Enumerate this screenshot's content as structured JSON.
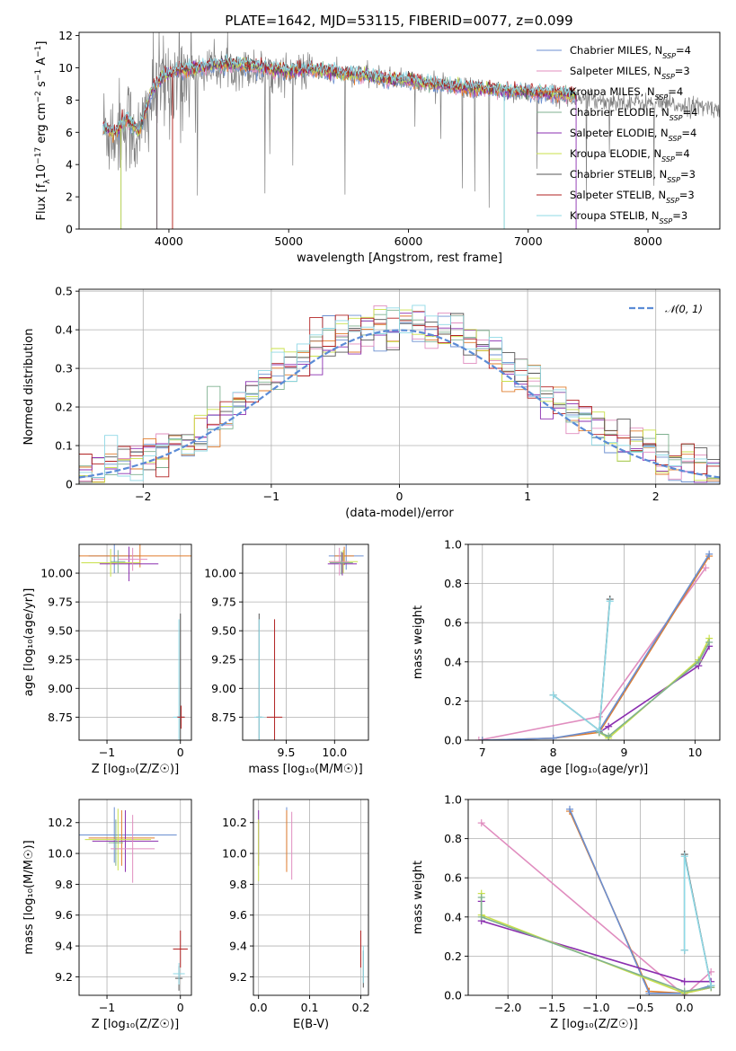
{
  "figure": {
    "title": "PLATE=1642, MJD=53115, FIBERID=0077, z=0.099"
  },
  "series_legend": [
    {
      "name": "Chabrier MILES, N",
      "sub": "SSP",
      "suffix": "=4",
      "color": "#6b8fd0"
    },
    {
      "name": "Salpeter MILES, N",
      "sub": "SSP",
      "suffix": "=3",
      "color": "#e08dbf"
    },
    {
      "name": "Kroupa MILES, N",
      "sub": "SSP",
      "suffix": "=4",
      "color": "#e07c2c"
    },
    {
      "name": "Chabrier ELODIE, N",
      "sub": "SSP",
      "suffix": "=4",
      "color": "#7fb18f"
    },
    {
      "name": "Salpeter ELODIE, N",
      "sub": "SSP",
      "suffix": "=4",
      "color": "#8b2fb0"
    },
    {
      "name": "Kroupa ELODIE, N",
      "sub": "SSP",
      "suffix": "=4",
      "color": "#c9e04a"
    },
    {
      "name": "Chabrier STELIB, N",
      "sub": "SSP",
      "suffix": "=3",
      "color": "#555555"
    },
    {
      "name": "Salpeter STELIB, N",
      "sub": "SSP",
      "suffix": "=3",
      "color": "#b22222"
    },
    {
      "name": "Kroupa STELIB, N",
      "sub": "SSP",
      "suffix": "=3",
      "color": "#8fd9e6"
    }
  ],
  "chart_data": [
    {
      "id": "spectrum",
      "type": "line",
      "title": "PLATE=1642, MJD=53115, FIBERID=0077, z=0.099",
      "xlabel": "wavelength [Angstrom, rest frame]",
      "ylabel_parts": [
        "Flux [f",
        "λ",
        "10",
        "−17",
        " erg cm",
        "−2",
        " s",
        "−1",
        " A",
        "−1",
        "]"
      ],
      "xlim": [
        3250,
        8600
      ],
      "ylim": [
        0,
        12.2
      ],
      "xticks": [
        4000,
        5000,
        6000,
        7000,
        8000
      ],
      "yticks": [
        0,
        2,
        4,
        6,
        8,
        10,
        12
      ],
      "grid": false,
      "legend_position": "right",
      "data_color": "#808080",
      "data_anchor_x": [
        3450,
        3550,
        3650,
        3750,
        3850,
        3950,
        4050,
        4200,
        4400,
        4600,
        4800,
        5000,
        5200,
        5400,
        5600,
        5800,
        6000,
        6200,
        6400,
        6600,
        6800,
        7000,
        7200,
        7400,
        7600,
        7800,
        8000,
        8200,
        8400,
        8600
      ],
      "data_anchor_y": [
        6.3,
        6.0,
        6.7,
        5.5,
        8.0,
        9.0,
        9.5,
        9.8,
        10.0,
        10.0,
        9.8,
        9.7,
        9.8,
        9.7,
        9.6,
        9.4,
        9.2,
        9.0,
        8.8,
        8.7,
        8.5,
        8.4,
        8.3,
        8.1,
        8.0,
        7.9,
        7.8,
        7.7,
        7.6,
        7.5
      ],
      "model_anchor_x": [
        3450,
        3550,
        3650,
        3750,
        3850,
        3950,
        4050,
        4200,
        4400,
        4600,
        4800,
        5000,
        5200,
        5400,
        5600,
        5800,
        6000,
        6200,
        6400,
        6600,
        6800,
        7000,
        7200,
        7400
      ],
      "model_anchor_y": [
        6.3,
        6.0,
        6.8,
        6.0,
        8.5,
        9.5,
        9.8,
        10.0,
        10.2,
        10.2,
        10.0,
        9.8,
        9.9,
        9.7,
        9.6,
        9.3,
        9.2,
        9.0,
        8.8,
        8.7,
        8.6,
        8.5,
        8.4,
        8.3
      ]
    },
    {
      "id": "residuals",
      "type": "step",
      "xlabel": "(data-model)/error",
      "ylabel": "Normed distribution",
      "xlim": [
        -2.5,
        2.5
      ],
      "ylim": [
        0,
        0.505
      ],
      "xticks": [
        -2,
        -1,
        0,
        1,
        2
      ],
      "yticks": [
        0.0,
        0.1,
        0.2,
        0.3,
        0.4,
        0.5
      ],
      "grid": true,
      "legend": [
        {
          "label": "𝒩(0, 1)",
          "color": "#5b8bd6",
          "style": "dashed"
        }
      ],
      "legend_position": "top-right",
      "bin_width": 0.1
    },
    {
      "id": "age-vs-Z",
      "type": "errorbar",
      "xlabel": "Z [log₁₀(Z/Z☉)]",
      "ylabel": "age  [log₁₀(age/yr)]",
      "xlim": [
        -1.38,
        0.15
      ],
      "ylim": [
        8.55,
        10.25
      ],
      "xticks": [
        -1,
        0
      ],
      "yticks": [
        8.75,
        9.0,
        9.25,
        9.5,
        9.75,
        10.0
      ],
      "ytick_labels": [
        "8.75",
        "9.00",
        "9.25",
        "9.50",
        "9.75",
        "10.00"
      ],
      "grid": true,
      "points": [
        {
          "series": 6,
          "x": 0.0,
          "y": 8.75,
          "xerr": 0.05,
          "yerr": 0.9
        },
        {
          "series": 8,
          "x": -0.02,
          "y": 8.75,
          "xerr": 0.08,
          "yerr": 0.85
        },
        {
          "series": 7,
          "x": 0.01,
          "y": 8.75,
          "xerr": 0.05,
          "yerr": 0.1
        },
        {
          "series": 0,
          "x": -0.9,
          "y": 10.15,
          "xerr": 0.35,
          "yerr": 0.15
        },
        {
          "series": 2,
          "x": -0.55,
          "y": 10.15,
          "xerr": 0.9,
          "yerr": 0.1
        },
        {
          "series": 4,
          "x": -0.7,
          "y": 10.08,
          "xerr": 0.4,
          "yerr": 0.15
        },
        {
          "series": 5,
          "x": -0.95,
          "y": 10.09,
          "xerr": 0.4,
          "yerr": 0.12
        },
        {
          "series": 1,
          "x": -0.65,
          "y": 10.12,
          "xerr": 0.2,
          "yerr": 0.1
        },
        {
          "series": 3,
          "x": -0.85,
          "y": 10.1,
          "xerr": 0.1,
          "yerr": 0.1
        }
      ]
    },
    {
      "id": "age-vs-mass",
      "type": "errorbar",
      "xlabel": "mass [log₁₀(M/M☉)]",
      "ylabel": "",
      "xlim": [
        9.05,
        10.35
      ],
      "ylim": [
        8.55,
        10.25
      ],
      "xticks": [
        9.5,
        10.0
      ],
      "xtick_labels": [
        "9.5",
        "10.0"
      ],
      "yticks": [
        8.75,
        9.0,
        9.25,
        9.5,
        9.75,
        10.0
      ],
      "ytick_labels": [
        "8.75",
        "9.00",
        "9.25",
        "9.50",
        "9.75",
        "10.00"
      ],
      "grid": true,
      "points": [
        {
          "series": 6,
          "x": 9.22,
          "y": 8.75,
          "xerr": 0.03,
          "yerr": 0.9
        },
        {
          "series": 8,
          "x": 9.22,
          "y": 8.75,
          "xerr": 0.05,
          "yerr": 0.85
        },
        {
          "series": 7,
          "x": 9.38,
          "y": 8.75,
          "xerr": 0.08,
          "yerr": 0.85
        },
        {
          "series": 0,
          "x": 10.12,
          "y": 10.15,
          "xerr": 0.18,
          "yerr": 0.12
        },
        {
          "series": 2,
          "x": 10.1,
          "y": 10.15,
          "xerr": 0.1,
          "yerr": 0.08
        },
        {
          "series": 4,
          "x": 10.08,
          "y": 10.08,
          "xerr": 0.15,
          "yerr": 0.1
        },
        {
          "series": 5,
          "x": 10.09,
          "y": 10.1,
          "xerr": 0.15,
          "yerr": 0.1
        },
        {
          "series": 1,
          "x": 10.05,
          "y": 10.1,
          "xerr": 0.1,
          "yerr": 0.12
        },
        {
          "series": 3,
          "x": 10.07,
          "y": 10.09,
          "xerr": 0.12,
          "yerr": 0.1
        }
      ]
    },
    {
      "id": "massweight-vs-age",
      "type": "line",
      "xlabel": "age  [log₁₀(age/yr)]",
      "ylabel": "mass weight",
      "xlim": [
        6.8,
        10.35
      ],
      "ylim": [
        0,
        1.0
      ],
      "xticks": [
        7,
        8,
        9,
        10
      ],
      "yticks": [
        0.0,
        0.2,
        0.4,
        0.6,
        0.8,
        1.0
      ],
      "ytick_labels": [
        "0.0",
        "0.2",
        "0.4",
        "0.6",
        "0.8",
        "1.0"
      ],
      "grid": true,
      "lines": [
        {
          "series": 1,
          "x": [
            6.95,
            8.65,
            10.15
          ],
          "y": [
            0.0,
            0.12,
            0.88
          ]
        },
        {
          "series": 2,
          "x": [
            7.0,
            8.0,
            8.65,
            10.2
          ],
          "y": [
            0.0,
            0.01,
            0.04,
            0.94
          ]
        },
        {
          "series": 0,
          "x": [
            7.0,
            8.0,
            8.65,
            10.2
          ],
          "y": [
            0.0,
            0.01,
            0.05,
            0.95
          ]
        },
        {
          "series": 4,
          "x": [
            8.65,
            8.78,
            10.05,
            10.2
          ],
          "y": [
            0.04,
            0.07,
            0.38,
            0.48
          ]
        },
        {
          "series": 5,
          "x": [
            8.65,
            8.78,
            10.05,
            10.2
          ],
          "y": [
            0.04,
            0.01,
            0.41,
            0.52
          ]
        },
        {
          "series": 3,
          "x": [
            8.65,
            8.78,
            10.05,
            10.2
          ],
          "y": [
            0.04,
            0.02,
            0.4,
            0.5
          ]
        },
        {
          "series": 6,
          "x": [
            8.0,
            8.65,
            8.8
          ],
          "y": [
            0.23,
            0.05,
            0.72
          ]
        },
        {
          "series": 8,
          "x": [
            8.0,
            8.65,
            8.8
          ],
          "y": [
            0.23,
            0.05,
            0.71
          ]
        }
      ]
    },
    {
      "id": "mass-vs-Z",
      "type": "errorbar",
      "xlabel": "Z [log₁₀(Z/Z☉)]",
      "ylabel": "mass [log₁₀(M/M☉)]",
      "xlim": [
        -1.38,
        0.15
      ],
      "ylim": [
        9.08,
        10.35
      ],
      "xticks": [
        -1,
        0
      ],
      "yticks": [
        9.2,
        9.4,
        9.6,
        9.8,
        10.0,
        10.2
      ],
      "ytick_labels": [
        "9.2",
        "9.4",
        "9.6",
        "9.8",
        "10.0",
        "10.2"
      ],
      "grid": true,
      "points": [
        {
          "series": 6,
          "x": -0.02,
          "y": 9.19,
          "xerr": 0.05,
          "yerr": 0.08
        },
        {
          "series": 8,
          "x": -0.02,
          "y": 9.22,
          "xerr": 0.08,
          "yerr": 0.07
        },
        {
          "series": 7,
          "x": 0.0,
          "y": 9.38,
          "xerr": 0.1,
          "yerr": 0.12
        },
        {
          "series": 0,
          "x": -0.9,
          "y": 10.12,
          "xerr": 0.85,
          "yerr": 0.18
        },
        {
          "series": 2,
          "x": -0.8,
          "y": 10.1,
          "xerr": 0.45,
          "yerr": 0.18
        },
        {
          "series": 4,
          "x": -0.75,
          "y": 10.08,
          "xerr": 0.45,
          "yerr": 0.2
        },
        {
          "series": 5,
          "x": -0.85,
          "y": 10.09,
          "xerr": 0.45,
          "yerr": 0.2
        },
        {
          "series": 1,
          "x": -0.65,
          "y": 10.03,
          "xerr": 0.3,
          "yerr": 0.22
        },
        {
          "series": 3,
          "x": -0.88,
          "y": 10.07,
          "xerr": 0.1,
          "yerr": 0.15
        }
      ]
    },
    {
      "id": "mass-vs-EBV",
      "type": "errorbar",
      "xlabel": "E(B-V)",
      "ylabel": "",
      "xlim": [
        -0.01,
        0.215
      ],
      "ylim": [
        9.08,
        10.35
      ],
      "xticks": [
        0.0,
        0.1,
        0.2
      ],
      "xtick_labels": [
        "0.0",
        "0.1",
        "0.2"
      ],
      "yticks": [
        9.2,
        9.4,
        9.6,
        9.8,
        10.0,
        10.2
      ],
      "ytick_labels": [
        "9.2",
        "9.4",
        "9.6",
        "9.8",
        "10.0",
        "10.2"
      ],
      "grid": true,
      "points": [
        {
          "series": 6,
          "x": 0.205,
          "y": 9.25,
          "xerr": 0.0,
          "yerr": 0.12
        },
        {
          "series": 7,
          "x": 0.2,
          "y": 9.38,
          "xerr": 0.0,
          "yerr": 0.12
        },
        {
          "series": 8,
          "x": 0.205,
          "y": 9.28,
          "xerr": 0.0,
          "yerr": 0.12
        },
        {
          "series": 0,
          "x": 0.055,
          "y": 10.12,
          "xerr": 0.0,
          "yerr": 0.18
        },
        {
          "series": 2,
          "x": 0.055,
          "y": 10.08,
          "xerr": 0.0,
          "yerr": 0.2
        },
        {
          "series": 1,
          "x": 0.065,
          "y": 10.05,
          "xerr": 0.0,
          "yerr": 0.22
        },
        {
          "series": 4,
          "x": 0.0,
          "y": 10.1,
          "xerr": 0.0,
          "yerr": 0.18
        },
        {
          "series": 5,
          "x": 0.0,
          "y": 10.02,
          "xerr": 0.0,
          "yerr": 0.2
        }
      ]
    },
    {
      "id": "massweight-vs-Z",
      "type": "line",
      "xlabel": "Z [log₁₀(Z/Z☉)]",
      "ylabel": "mass weight",
      "xlim": [
        -2.45,
        0.4
      ],
      "ylim": [
        0,
        1.0
      ],
      "xticks": [
        -2.0,
        -1.5,
        -1.0,
        -0.5,
        0.0
      ],
      "xtick_labels": [
        "−2.0",
        "−1.5",
        "−1.0",
        "−0.5",
        "0.0"
      ],
      "yticks": [
        0.0,
        0.2,
        0.4,
        0.6,
        0.8,
        1.0
      ],
      "ytick_labels": [
        "0.0",
        "0.2",
        "0.4",
        "0.6",
        "0.8",
        "1.0"
      ],
      "grid": true,
      "lines": [
        {
          "series": 1,
          "x": [
            -2.3,
            0.0,
            0.3
          ],
          "y": [
            0.88,
            0.0,
            0.12
          ]
        },
        {
          "series": 2,
          "x": [
            -1.3,
            -0.4,
            0.0,
            0.3
          ],
          "y": [
            0.94,
            0.02,
            0.01,
            0.04
          ]
        },
        {
          "series": 0,
          "x": [
            -1.3,
            -0.4,
            0.0,
            0.3
          ],
          "y": [
            0.95,
            0.01,
            0.01,
            0.05
          ]
        },
        {
          "series": 4,
          "x": [
            -2.3,
            -2.3,
            0.0,
            0.3
          ],
          "y": [
            0.48,
            0.38,
            0.07,
            0.07
          ]
        },
        {
          "series": 5,
          "x": [
            -2.3,
            -2.3,
            0.0,
            0.3
          ],
          "y": [
            0.52,
            0.41,
            0.01,
            0.04
          ]
        },
        {
          "series": 3,
          "x": [
            -2.3,
            -2.3,
            0.0,
            0.3
          ],
          "y": [
            0.5,
            0.4,
            0.02,
            0.04
          ]
        },
        {
          "series": 6,
          "x": [
            0.0,
            0.0,
            0.3
          ],
          "y": [
            0.23,
            0.72,
            0.05
          ]
        },
        {
          "series": 8,
          "x": [
            0.0,
            0.0,
            0.3
          ],
          "y": [
            0.23,
            0.71,
            0.05
          ]
        }
      ]
    }
  ]
}
